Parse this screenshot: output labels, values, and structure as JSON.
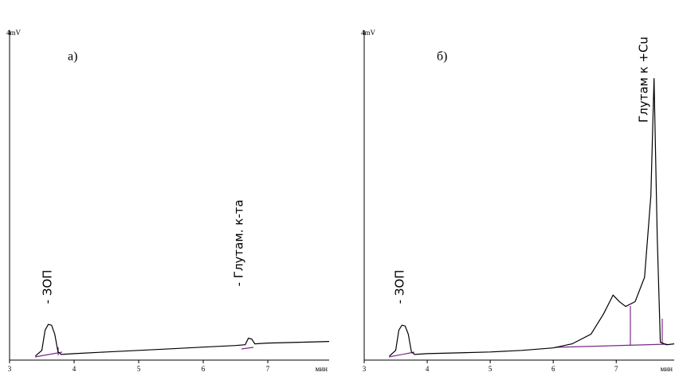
{
  "chart_data": [
    {
      "type": "line",
      "panel_label": "а)",
      "xlabel": "мин",
      "xlim": [
        3,
        7.95
      ],
      "xticks": [
        3,
        4,
        5,
        6,
        7
      ],
      "ylim": [
        0,
        4
      ],
      "yticks": [
        {
          "value": 4,
          "label": "4mV"
        }
      ],
      "annotations": [
        "- ЗОП",
        "- Глутам. к-та"
      ],
      "series": [
        {
          "color": "#000000",
          "x": [
            3.4,
            3.5,
            3.55,
            3.6,
            3.65,
            3.7,
            3.75,
            3.8,
            4.0,
            4.5,
            5.0,
            5.5,
            6.0,
            6.5,
            6.65,
            6.7,
            6.75,
            6.8,
            7.0,
            7.5,
            7.95
          ],
          "values": [
            0.03,
            0.1,
            0.35,
            0.42,
            0.41,
            0.3,
            0.08,
            0.05,
            0.06,
            0.08,
            0.1,
            0.12,
            0.14,
            0.16,
            0.17,
            0.25,
            0.24,
            0.18,
            0.19,
            0.2,
            0.21
          ]
        }
      ]
    },
    {
      "type": "line",
      "panel_label": "б)",
      "xlabel": "мин",
      "xlim": [
        3,
        7.92
      ],
      "xticks": [
        3,
        4,
        5,
        6,
        7
      ],
      "ylim": [
        0,
        4
      ],
      "yticks": [
        {
          "value": 4,
          "label": "4mV"
        }
      ],
      "annotations": [
        "- ЗОП",
        "Глутам к +Cu"
      ],
      "series": [
        {
          "color": "#000000",
          "x": [
            3.4,
            3.5,
            3.55,
            3.6,
            3.65,
            3.7,
            3.75,
            3.8,
            4.0,
            4.5,
            5.0,
            5.5,
            6.0,
            6.3,
            6.6,
            6.8,
            6.95,
            7.05,
            7.15,
            7.3,
            7.45,
            7.55,
            7.6,
            7.65,
            7.7,
            7.8,
            7.92
          ],
          "values": [
            0.03,
            0.1,
            0.35,
            0.41,
            0.4,
            0.3,
            0.08,
            0.05,
            0.06,
            0.07,
            0.08,
            0.1,
            0.13,
            0.18,
            0.3,
            0.55,
            0.78,
            0.7,
            0.64,
            0.7,
            1.0,
            2.0,
            3.45,
            1.5,
            0.2,
            0.17,
            0.18
          ]
        }
      ]
    }
  ]
}
